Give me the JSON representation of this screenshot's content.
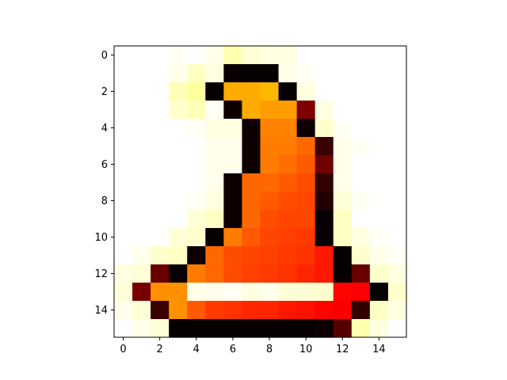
{
  "chart_data": {
    "type": "heatmap",
    "colormap": "hot",
    "title": "",
    "xlabel": "",
    "ylabel": "",
    "x_ticks": [
      0,
      2,
      4,
      6,
      8,
      10,
      12,
      14
    ],
    "y_ticks": [
      0,
      2,
      4,
      6,
      8,
      10,
      12,
      14
    ],
    "x_tick_labels": [
      "0",
      "2",
      "4",
      "6",
      "8",
      "10",
      "12",
      "14"
    ],
    "y_tick_labels": [
      "0",
      "2",
      "4",
      "6",
      "8",
      "10",
      "12",
      "14"
    ],
    "xlim": [
      -0.5,
      15.5
    ],
    "ylim": [
      15.5,
      -0.5
    ],
    "grid": false,
    "legend": "none",
    "values": [
      [
        1.0,
        1.0,
        1.0,
        0.99,
        1.0,
        0.98,
        0.92,
        0.96,
        0.97,
        0.97,
        1.0,
        1.0,
        1.0,
        1.0,
        1.0,
        1.0
      ],
      [
        1.0,
        1.0,
        1.0,
        0.98,
        0.94,
        0.97,
        0.01,
        0.01,
        0.01,
        0.98,
        0.99,
        1.0,
        1.0,
        1.0,
        1.0,
        1.0
      ],
      [
        1.0,
        1.0,
        1.0,
        0.93,
        0.9,
        0.01,
        0.62,
        0.62,
        0.64,
        0.01,
        0.97,
        1.0,
        1.0,
        1.0,
        1.0,
        1.0
      ],
      [
        1.0,
        1.0,
        1.0,
        0.95,
        0.93,
        0.99,
        0.02,
        0.62,
        0.6,
        0.6,
        0.18,
        0.97,
        1.0,
        1.0,
        1.0,
        1.0
      ],
      [
        1.0,
        1.0,
        1.0,
        1.0,
        0.99,
        0.97,
        0.97,
        0.02,
        0.56,
        0.56,
        0.02,
        0.95,
        0.99,
        1.0,
        1.0,
        1.0
      ],
      [
        1.0,
        1.0,
        1.0,
        1.0,
        1.0,
        0.98,
        0.98,
        0.02,
        0.55,
        0.55,
        0.52,
        0.08,
        0.98,
        0.99,
        1.0,
        1.0
      ],
      [
        1.0,
        1.0,
        1.0,
        1.0,
        1.0,
        0.98,
        0.98,
        0.02,
        0.55,
        0.53,
        0.5,
        0.16,
        0.98,
        1.0,
        1.0,
        1.0
      ],
      [
        1.0,
        1.0,
        1.0,
        1.0,
        1.0,
        0.98,
        0.02,
        0.52,
        0.52,
        0.5,
        0.48,
        0.07,
        0.98,
        1.0,
        1.0,
        1.0
      ],
      [
        1.0,
        1.0,
        1.0,
        1.0,
        0.99,
        0.97,
        0.02,
        0.52,
        0.5,
        0.48,
        0.47,
        0.05,
        0.96,
        0.99,
        1.0,
        1.0
      ],
      [
        1.0,
        1.0,
        1.0,
        1.0,
        0.96,
        0.94,
        0.02,
        0.52,
        0.48,
        0.47,
        0.47,
        0.01,
        0.94,
        1.0,
        1.0,
        1.0
      ],
      [
        1.0,
        1.0,
        1.0,
        0.96,
        0.95,
        0.01,
        0.55,
        0.5,
        0.47,
        0.46,
        0.45,
        0.01,
        0.94,
        0.97,
        0.99,
        1.0
      ],
      [
        1.0,
        0.98,
        0.95,
        0.94,
        0.02,
        0.52,
        0.48,
        0.47,
        0.46,
        0.45,
        0.44,
        0.4,
        0.01,
        0.95,
        0.98,
        0.99
      ],
      [
        0.97,
        0.96,
        0.15,
        0.01,
        0.55,
        0.52,
        0.48,
        0.46,
        0.45,
        0.44,
        0.42,
        0.4,
        0.01,
        0.15,
        0.95,
        0.97
      ],
      [
        0.96,
        0.17,
        0.58,
        0.58,
        0.98,
        0.98,
        0.99,
        0.97,
        0.98,
        0.96,
        0.96,
        0.95,
        0.37,
        0.36,
        0.01,
        0.95
      ],
      [
        0.98,
        0.96,
        0.08,
        0.58,
        0.5,
        0.45,
        0.44,
        0.42,
        0.42,
        0.4,
        0.39,
        0.37,
        0.36,
        0.07,
        0.94,
        0.97
      ],
      [
        1.0,
        0.98,
        0.96,
        0.01,
        0.01,
        0.01,
        0.01,
        0.01,
        0.01,
        0.01,
        0.01,
        0.02,
        0.12,
        0.92,
        0.97,
        1.0
      ]
    ]
  }
}
